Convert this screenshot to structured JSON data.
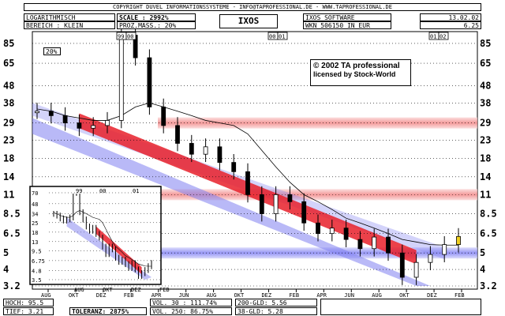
{
  "header": {
    "copyright": "COPYRIGHT DUVEL INFORMATIONSSYSTEME - INFO@TAPROFESSIONAL.DE - WWW.TAPROFESSIONAL.DE",
    "scale_type": "LOGARITHMISCH",
    "range": "BEREICH : KLEIN",
    "scale": "SCALE : 2992%",
    "proz_mass": "PROZ.MASS.: 20%",
    "ticker": "IXOS",
    "company": "IXOS SOFTWARE",
    "wkn": "WKN 506150 IN EUR",
    "date": "13.02.02",
    "price": "6.25"
  },
  "main_chart": {
    "y_ticks": [
      "85",
      "65",
      "48",
      "38",
      "29",
      "23",
      "18",
      "14",
      "11",
      "8.5",
      "6.5",
      "5",
      "4",
      "3.2"
    ],
    "x_ticks": [
      "AUG",
      "OKT",
      "DEZ",
      "FEB",
      "APR",
      "JUN",
      "AUG",
      "OKT",
      "DEZ",
      "FEB",
      "APR",
      "JUN",
      "AUG",
      "OKT",
      "DEZ",
      "FEB"
    ],
    "year_tags": [
      "99",
      "00",
      "00",
      "01",
      "01",
      "02"
    ],
    "pct_tag": "20%",
    "logo_line1": "© 2002 TA professional",
    "logo_line2": "licensed by Stock-World"
  },
  "inset": {
    "y_ticks": [
      "70",
      "48",
      "34",
      "25",
      "18",
      "13",
      "9.5",
      "6.75",
      "4.8",
      "3.5"
    ],
    "x_ticks": [
      "AUG",
      "OKT",
      "DEZ",
      "FEB"
    ],
    "year_tags": [
      "99",
      "00",
      "01"
    ]
  },
  "footer": {
    "hoch": "HOCH: 95.5",
    "tief": "TIEF: 3.21",
    "toleranz": "TOLERANZ: 2875%",
    "vol30": "VOL. 30 : 111.74%",
    "vol250": "VOL. 250: 86.75%",
    "gld200": "200-GLD: 5.56",
    "gld38": "38-GLD: 5.28"
  },
  "colors": {
    "support_band": "#f08080",
    "channel_down": "#6e6ef0",
    "trend_red": "#e8202a",
    "candle": "#000000",
    "highlight": "#f0d020"
  },
  "chart_data": {
    "type": "candlestick",
    "y_scale": "log",
    "ylim": [
      3.2,
      95.5
    ],
    "x": [
      "Aug 99",
      "Sep 99",
      "Oct 99",
      "Nov 99",
      "Dec 99",
      "Jan 00",
      "Feb 00",
      "Mar 00",
      "Apr 00",
      "May 00",
      "Jun 00",
      "Jul 00",
      "Aug 00",
      "Sep 00",
      "Oct 00",
      "Nov 00",
      "Dec 00",
      "Jan 01",
      "Feb 01",
      "Mar 01",
      "Apr 01",
      "May 01",
      "Jun 01",
      "Jul 01",
      "Aug 01",
      "Sep 01",
      "Oct 01",
      "Nov 01",
      "Dec 01",
      "Jan 02",
      "Feb 02"
    ],
    "close": [
      34,
      32,
      29,
      27,
      28,
      30,
      95,
      70,
      36,
      28,
      22,
      19,
      21,
      17,
      15,
      11,
      8.5,
      11,
      10,
      7.5,
      6.5,
      7,
      6,
      5.3,
      6.2,
      5,
      3.6,
      4.4,
      4.9,
      5.6,
      6.25
    ],
    "ma_200": [
      35,
      34,
      32,
      31,
      30,
      30,
      32,
      36,
      38,
      36,
      34,
      32,
      30,
      29,
      28,
      25,
      20,
      16,
      13,
      11,
      10,
      9,
      8,
      7.5,
      7,
      6.5,
      6,
      5.8,
      5.6,
      5.56,
      5.56
    ]
  }
}
